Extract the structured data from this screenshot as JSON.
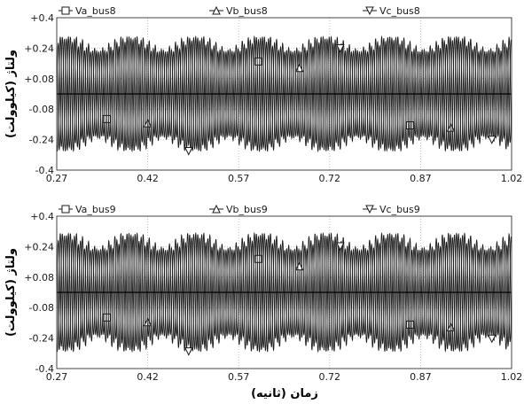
{
  "chart_data": [
    {
      "type": "line",
      "title": "",
      "xlabel": "",
      "ylabel": "ولتاژ (کیلوولت)",
      "xlim": [
        0.27,
        1.02
      ],
      "ylim": [
        -0.4,
        0.4
      ],
      "x_tick_labels": [
        "0.27",
        "0.42",
        "0.57",
        "0.72",
        "0.87",
        "1.02"
      ],
      "y_tick_labels": [
        "+0.4",
        "+0.24",
        "+0.08",
        "-0.08",
        "-0.24",
        "-0.4"
      ],
      "legend_placement": "top",
      "grid": true,
      "series": [
        {
          "name": "Va_bus8",
          "marker": "square",
          "phase_deg": 0,
          "peak_max": 0.3,
          "peak_min": 0.22
        },
        {
          "name": "Vb_bus8",
          "marker": "triangle-up",
          "phase_deg": 120,
          "peak_max": 0.3,
          "peak_min": 0.22
        },
        {
          "name": "Vc_bus8",
          "marker": "triangle-down",
          "phase_deg": 240,
          "peak_max": 0.3,
          "peak_min": 0.22
        }
      ]
    },
    {
      "type": "line",
      "title": "",
      "xlabel": "زمان (ثانیه)",
      "ylabel": "ولتاژ (کیلوولت)",
      "xlim": [
        0.27,
        1.02
      ],
      "ylim": [
        -0.4,
        0.4
      ],
      "x_tick_labels": [
        "0.27",
        "0.42",
        "0.57",
        "0.72",
        "0.87",
        "1.02"
      ],
      "y_tick_labels": [
        "+0.4",
        "+0.24",
        "+0.08",
        "-0.08",
        "-0.24",
        "-0.4"
      ],
      "legend_placement": "top",
      "grid": true,
      "series": [
        {
          "name": "Va_bus9",
          "marker": "square",
          "phase_deg": 0,
          "peak_max": 0.31,
          "peak_min": 0.22
        },
        {
          "name": "Vb_bus9",
          "marker": "triangle-up",
          "phase_deg": 120,
          "peak_max": 0.31,
          "peak_min": 0.22
        },
        {
          "name": "Vc_bus9",
          "marker": "triangle-down",
          "phase_deg": 240,
          "peak_max": 0.31,
          "peak_min": 0.22
        }
      ]
    }
  ],
  "colors": {
    "trace": "#1a1a1a",
    "grid": "#b8b8b8",
    "frame": "#444444",
    "zero_line": "#000000"
  }
}
